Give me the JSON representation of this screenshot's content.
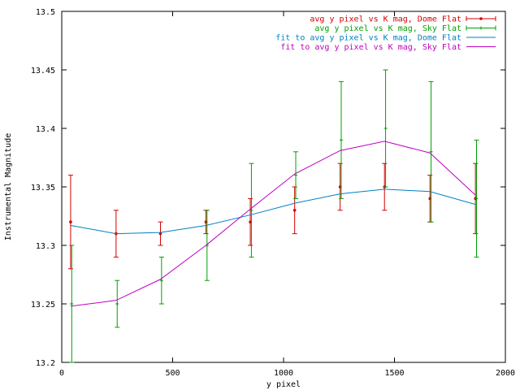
{
  "chart_data": {
    "type": "line",
    "title": "",
    "xlabel": "y pixel",
    "ylabel": "Instrumental Magnitude",
    "xlim": [
      0,
      2000
    ],
    "ylim": [
      13.2,
      13.5
    ],
    "xticks": [
      0,
      500,
      1000,
      1500,
      2000
    ],
    "xtick_labels": [
      "0",
      "500",
      "1000",
      "1500",
      "2000"
    ],
    "yticks": [
      13.2,
      13.25,
      13.3,
      13.35,
      13.4,
      13.45,
      13.5
    ],
    "ytick_labels": [
      "13.2",
      "13.25",
      "13.3",
      "13.35",
      "13.4",
      "13.45",
      "13.5"
    ],
    "grid": false,
    "legend_position": "top-right",
    "series": [
      {
        "name": "avg y pixel vs K mag, Dome Flat",
        "kind": "errorbar",
        "color": "#d40000",
        "x": [
          40,
          245,
          445,
          650,
          850,
          1050,
          1255,
          1455,
          1660,
          1865
        ],
        "y": [
          13.32,
          13.31,
          13.31,
          13.32,
          13.32,
          13.33,
          13.35,
          13.35,
          13.34,
          13.34
        ],
        "yerr": [
          0.04,
          0.02,
          0.01,
          0.01,
          0.02,
          0.02,
          0.02,
          0.02,
          0.02,
          0.03
        ]
      },
      {
        "name": "avg y pixel vs K mag, Sky Flat",
        "kind": "errorbar",
        "color": "#00a000",
        "x": [
          45,
          250,
          450,
          655,
          855,
          1055,
          1260,
          1460,
          1665,
          1870
        ],
        "y": [
          13.25,
          13.25,
          13.27,
          13.3,
          13.33,
          13.36,
          13.39,
          13.4,
          13.38,
          13.34
        ],
        "yerr": [
          0.05,
          0.02,
          0.02,
          0.03,
          0.04,
          0.02,
          0.05,
          0.05,
          0.06,
          0.05
        ]
      },
      {
        "name": "fit to avg y pixel vs K mag, Dome Flat",
        "kind": "line",
        "color": "#0080c0",
        "x": [
          40,
          245,
          445,
          650,
          850,
          1050,
          1255,
          1455,
          1660,
          1865
        ],
        "y": [
          13.317,
          13.31,
          13.311,
          13.317,
          13.326,
          13.336,
          13.344,
          13.348,
          13.346,
          13.335
        ]
      },
      {
        "name": "fit to avg y pixel vs K mag, Sky Flat",
        "kind": "line",
        "color": "#c000c0",
        "x": [
          40,
          245,
          445,
          650,
          850,
          1050,
          1255,
          1455,
          1660,
          1865
        ],
        "y": [
          13.248,
          13.253,
          13.271,
          13.3,
          13.331,
          13.361,
          13.381,
          13.389,
          13.379,
          13.343
        ]
      }
    ]
  }
}
